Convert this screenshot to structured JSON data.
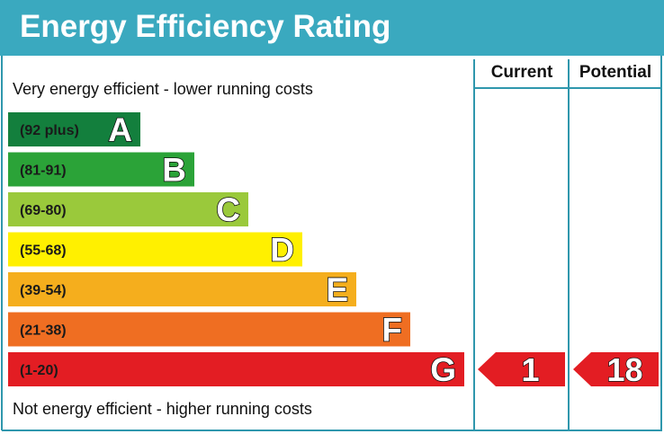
{
  "title": "Energy Efficiency Rating",
  "columns": {
    "current": "Current",
    "potential": "Potential"
  },
  "top_note": "Very energy efficient - lower running costs",
  "bottom_note": "Not energy efficient - higher running costs",
  "colors": {
    "header": "#3aa9bf",
    "frame": "#2f97ad",
    "arrow": "#e31d23"
  },
  "chart_data": {
    "type": "bar",
    "title": "Energy Efficiency Rating",
    "categories": [
      "A",
      "B",
      "C",
      "D",
      "E",
      "F",
      "G"
    ],
    "bands": [
      {
        "letter": "A",
        "range": "(92 plus)",
        "color": "#137f3d"
      },
      {
        "letter": "B",
        "range": "(81-91)",
        "color": "#2ba338"
      },
      {
        "letter": "C",
        "range": "(69-80)",
        "color": "#9ac93b"
      },
      {
        "letter": "D",
        "range": "(55-68)",
        "color": "#fff000"
      },
      {
        "letter": "E",
        "range": "(39-54)",
        "color": "#f5ae1d"
      },
      {
        "letter": "F",
        "range": "(21-38)",
        "color": "#ef6e22"
      },
      {
        "letter": "G",
        "range": "(1-20)",
        "color": "#e31d23"
      }
    ],
    "current": {
      "value": 1,
      "band": "G"
    },
    "potential": {
      "value": 18,
      "band": "G"
    }
  }
}
